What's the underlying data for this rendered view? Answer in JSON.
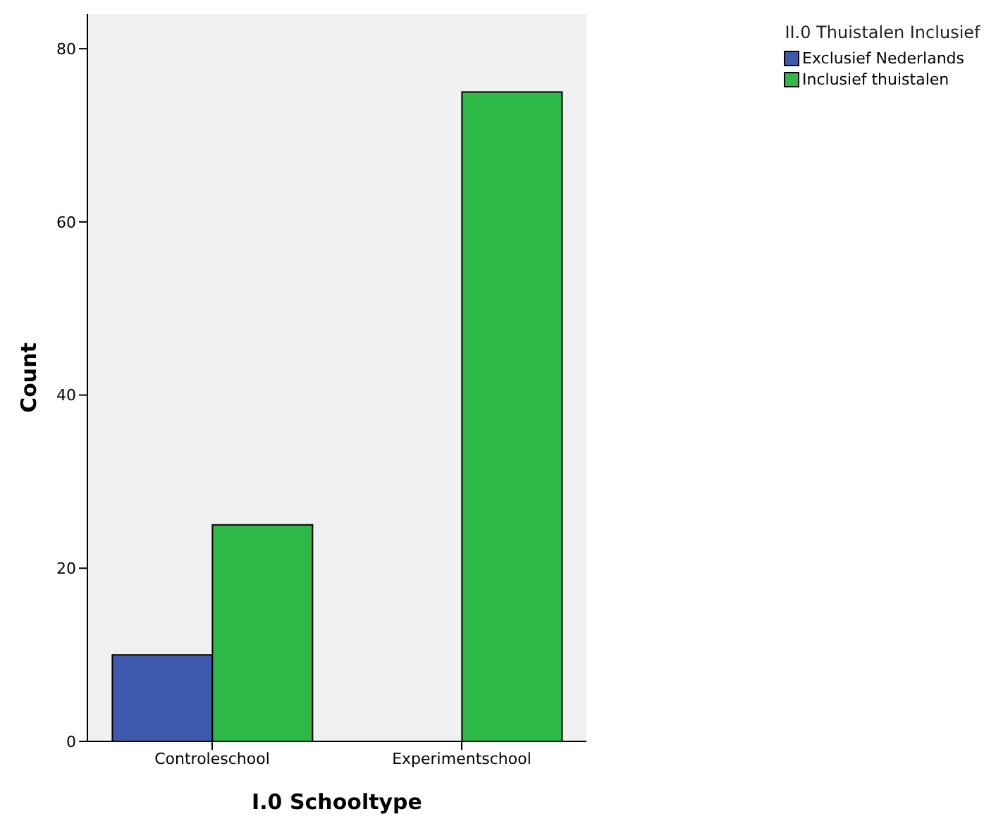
{
  "chart_data": {
    "type": "bar",
    "xlabel": "I.0  Schooltype",
    "ylabel": "Count",
    "legend_title": "II.0  Thuistalen Inclusief",
    "categories": [
      "Controleschool",
      "Experimentschool"
    ],
    "series": [
      {
        "name": "Exclusief Nederlands",
        "color": "#3e58ac",
        "values": [
          10,
          0
        ]
      },
      {
        "name": "Inclusief thuistalen",
        "color": "#2eb848",
        "values": [
          25,
          75
        ]
      }
    ],
    "ylim": [
      0,
      84
    ],
    "yticks": [
      0,
      20,
      40,
      60,
      80
    ],
    "grid": false,
    "legend": "top right"
  }
}
